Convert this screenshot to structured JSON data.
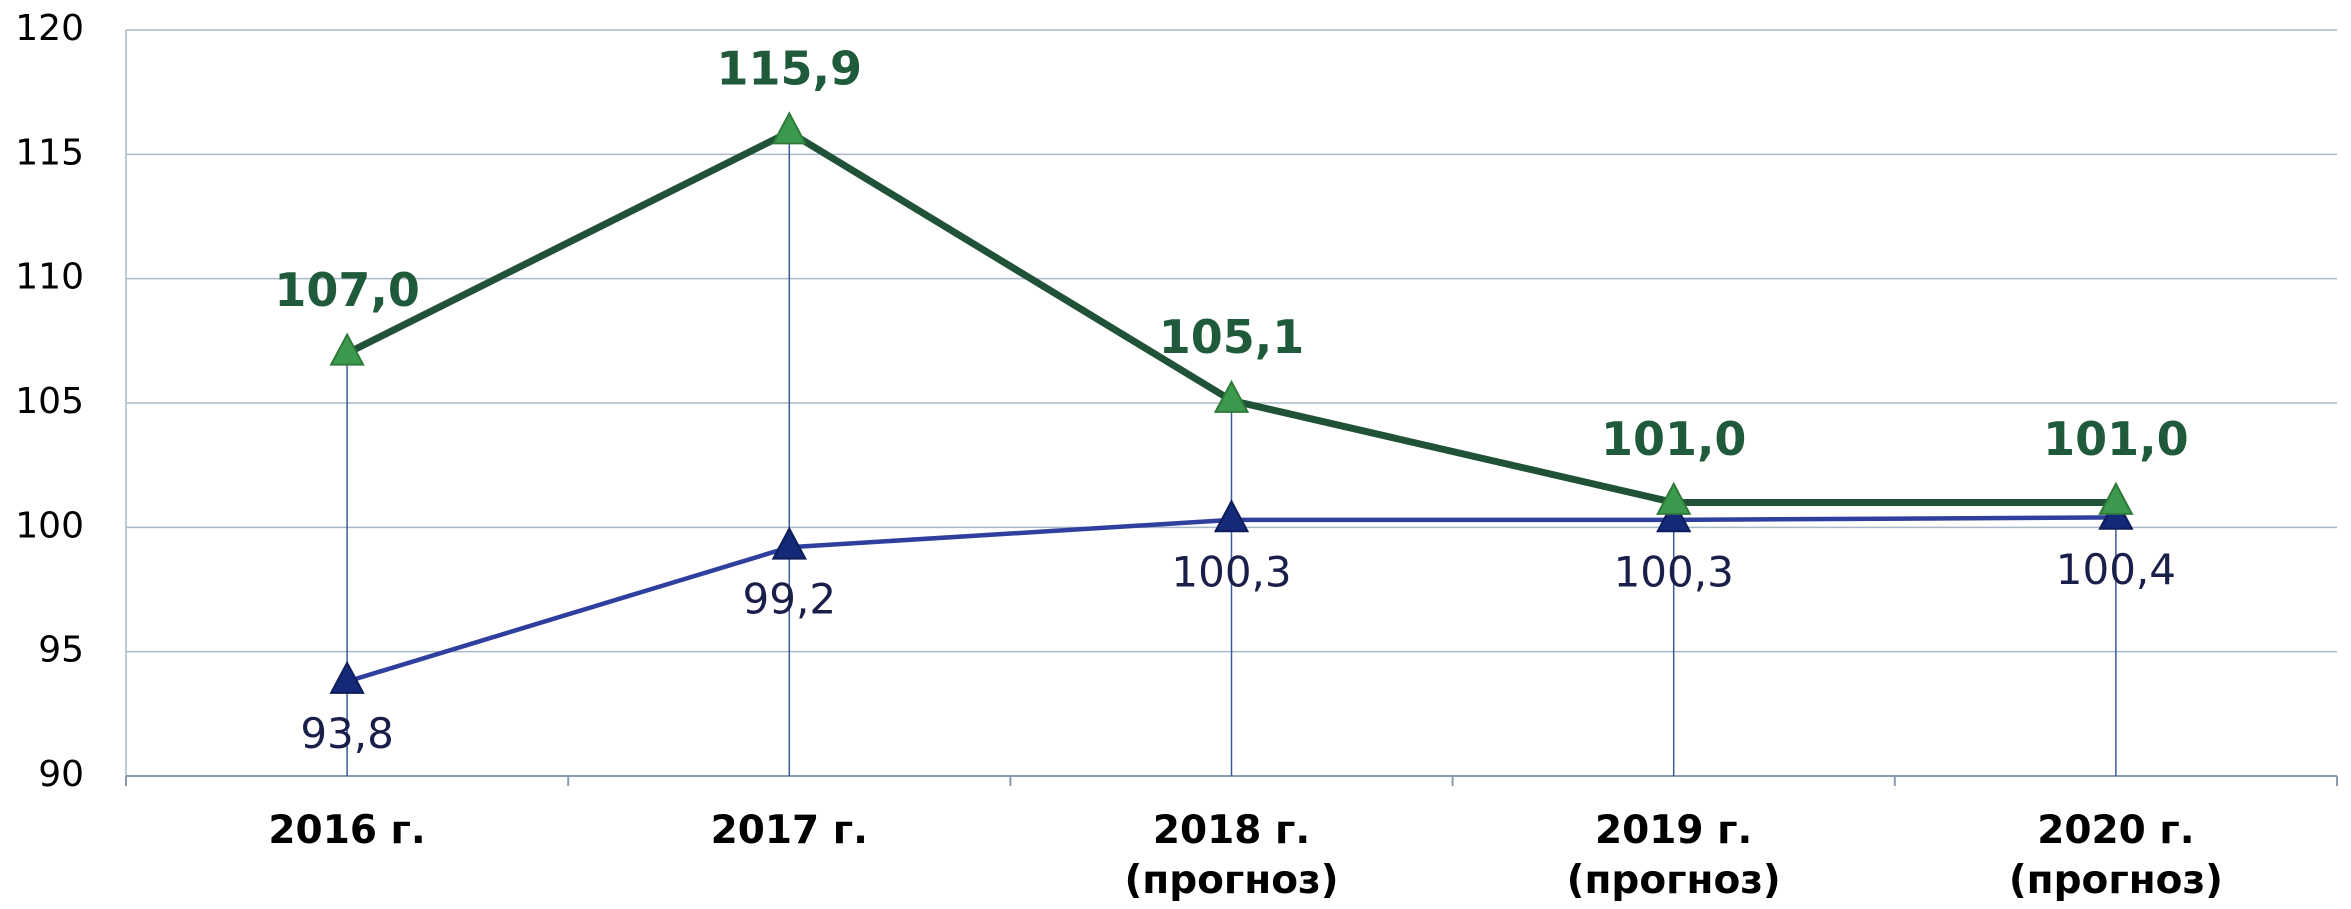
{
  "chart_data": {
    "type": "line",
    "categories": [
      "2016 г.",
      "2017 г.",
      "2018 г.\n(прогноз)",
      "2019 г.\n(прогноз)",
      "2020 г.\n(прогноз)"
    ],
    "series": [
      {
        "color": "#1f5236",
        "marker_color": "#3c9a4e",
        "label_color": "#1f5a3a",
        "values": [
          107.0,
          115.9,
          105.1,
          101.0,
          101.0
        ],
        "value_labels": [
          "107,0",
          "115,9",
          "105,1",
          "101,0",
          "101,0"
        ]
      },
      {
        "color": "#2f3f9e",
        "marker_color": "#142a78",
        "label_color": "#1a1f4a",
        "values": [
          93.8,
          99.2,
          100.3,
          100.3,
          100.4
        ],
        "value_labels": [
          "93,8",
          "99,2",
          "100,3",
          "100,3",
          "100,4"
        ]
      }
    ],
    "ylim": [
      90,
      120
    ],
    "yticks": [
      90,
      95,
      100,
      105,
      110,
      115,
      120
    ],
    "grid": true
  }
}
